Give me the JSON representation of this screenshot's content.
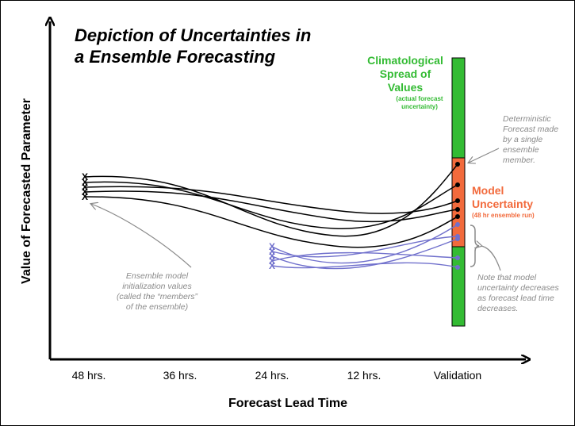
{
  "title": {
    "line1": "Depiction of Uncertainties in",
    "line2": "a Ensemble Forecasting"
  },
  "axes": {
    "x_label": "Forecast Lead Time",
    "y_label": "Value of Forecasted Parameter",
    "x_ticks": [
      "48 hrs.",
      "36 hrs.",
      "24 hrs.",
      "12 hrs.",
      "Validation"
    ]
  },
  "climatological": {
    "lines": [
      "Climatological",
      "Spread of",
      "Values"
    ],
    "sub": [
      "(actual forecast",
      "uncertainty)"
    ]
  },
  "model_uncertainty": {
    "lines": [
      "Model",
      "Uncertainty"
    ],
    "sub": "(48 hr ensemble run)"
  },
  "annotations": {
    "deterministic": [
      "Deterministic",
      "Forecast made",
      "by a single",
      "ensemble",
      "member."
    ],
    "ensemble_init": [
      "Ensemble model",
      "initialization values",
      "(called the “members”",
      "of the ensemble)"
    ],
    "note": [
      "Note that model",
      "uncertainty decreases",
      "as forecast lead time",
      "decreases."
    ]
  },
  "markers": {
    "init_marker": "X"
  },
  "colors": {
    "green": "#33bb33",
    "orange": "#f26a3c",
    "black_curves": "#000000",
    "blue_curves": "#7070cc",
    "annotation_gray": "#8a8a8a"
  }
}
